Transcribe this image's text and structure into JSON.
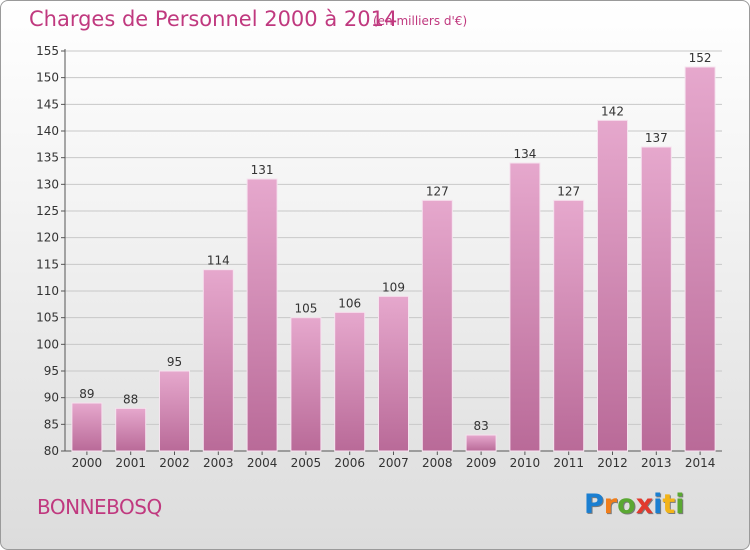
{
  "header": {
    "title": "Charges de Personnel 2000 à 2014",
    "subtitle": "(en milliers d'€)"
  },
  "footer": {
    "commune": "BONNEBOSQ",
    "logo_text": "Proxiti",
    "logo_letters": [
      {
        "char": "P",
        "color": "#1b7fd1"
      },
      {
        "char": "r",
        "color": "#f07d1a"
      },
      {
        "char": "o",
        "color": "#5aa832"
      },
      {
        "char": "x",
        "color": "#e23a2e"
      },
      {
        "char": "i",
        "color": "#1b7fd1"
      },
      {
        "char": "t",
        "color": "#f2b318"
      },
      {
        "char": "i",
        "color": "#5aa832"
      }
    ]
  },
  "colors": {
    "accent": "#c0397f",
    "bar_top": "#e6a8cd",
    "bar_bottom": "#b96a98",
    "grid": "#c8c8c8"
  },
  "chart_data": {
    "type": "bar",
    "title": "Charges de Personnel 2000 à 2014",
    "subtitle": "(en milliers d'€)",
    "xlabel": "",
    "ylabel": "",
    "categories": [
      "2000",
      "2001",
      "2002",
      "2003",
      "2004",
      "2005",
      "2006",
      "2007",
      "2008",
      "2009",
      "2010",
      "2011",
      "2012",
      "2013",
      "2014"
    ],
    "values": [
      89,
      88,
      95,
      114,
      131,
      105,
      106,
      109,
      127,
      83,
      134,
      127,
      142,
      137,
      152
    ],
    "ylim": [
      80,
      155
    ],
    "yticks": [
      80,
      85,
      90,
      95,
      100,
      105,
      110,
      115,
      120,
      125,
      130,
      135,
      140,
      145,
      150,
      155
    ],
    "grid": true,
    "data_labels": true
  }
}
